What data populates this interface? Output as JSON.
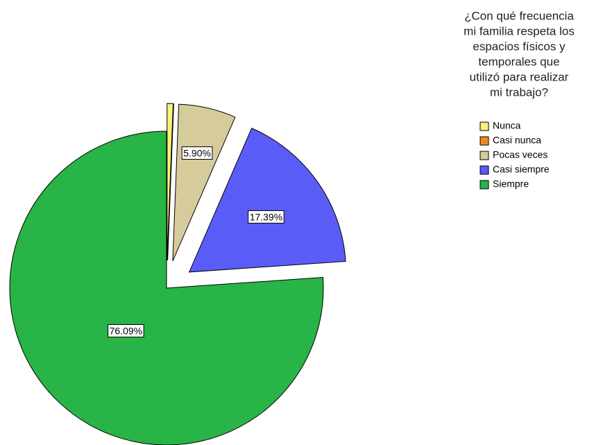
{
  "chart_data": {
    "type": "pie",
    "title": [
      "¿Con qué frecuencia",
      "mi familia respeta los",
      "espacios físicos y",
      "temporales que",
      "utilizó para realizar",
      "mi trabajo?"
    ],
    "categories": [
      "Nunca",
      "Casi nunca",
      "Pocas veces",
      "Casi siempre",
      "Siempre"
    ],
    "values": [
      0.62,
      0,
      5.9,
      17.39,
      76.09
    ],
    "value_labels": [
      null,
      null,
      "5.90%",
      "17.39%",
      "76.09%"
    ],
    "colors": [
      "#f7f27a",
      "#f08a1c",
      "#d6cb9a",
      "#5a5cf7",
      "#28b446"
    ],
    "exploded": [
      true,
      true,
      true,
      true,
      false
    ]
  }
}
